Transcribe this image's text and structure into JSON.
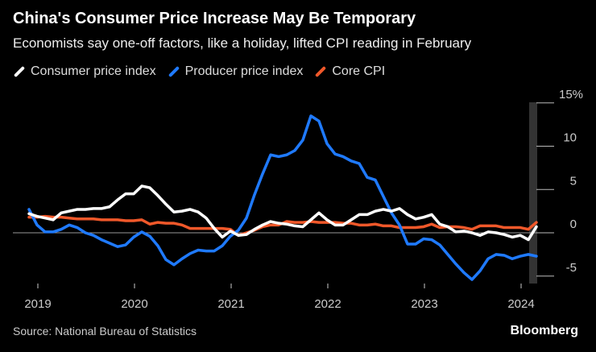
{
  "title": "China's Consumer Price Increase May Be Temporary",
  "subtitle": "Economists say one-off factors, like a holiday, lifted CPI reading in February",
  "source": "Source: National Bureau of Statistics",
  "logo": "Bloomberg",
  "chart_data": {
    "type": "line",
    "start_month": "2018-11",
    "end_month": "2024-02",
    "x_tick_labels": [
      "2019",
      "2020",
      "2021",
      "2022",
      "2023",
      "2024"
    ],
    "y_tick_labels": [
      "15%",
      "10",
      "5",
      "0",
      "-5"
    ],
    "y_ticks": [
      15,
      10,
      5,
      0,
      -5
    ],
    "ylim": [
      -5.5,
      15
    ],
    "legend_position": "top-left",
    "highlight_period": "2024-02",
    "series": [
      {
        "name": "Consumer price index",
        "color": "#ffffff",
        "values": [
          2.2,
          1.9,
          1.7,
          1.5,
          2.3,
          2.5,
          2.7,
          2.7,
          2.8,
          2.8,
          3.0,
          3.8,
          4.5,
          4.5,
          5.4,
          5.2,
          4.3,
          3.3,
          2.4,
          2.5,
          2.7,
          2.4,
          1.7,
          0.5,
          -0.5,
          0.2,
          -0.3,
          -0.2,
          0.4,
          0.9,
          1.3,
          1.1,
          1.0,
          0.8,
          0.7,
          1.5,
          2.3,
          1.5,
          0.9,
          0.9,
          1.5,
          2.1,
          2.1,
          2.5,
          2.7,
          2.5,
          2.8,
          2.1,
          1.6,
          1.8,
          2.1,
          1.0,
          0.7,
          0.1,
          0.2,
          0.0,
          -0.3,
          0.1,
          0.0,
          -0.2,
          -0.5,
          -0.3,
          -0.8,
          0.7
        ]
      },
      {
        "name": "Producer price index",
        "color": "#1f7aff",
        "values": [
          2.7,
          0.9,
          0.1,
          0.1,
          0.4,
          0.9,
          0.6,
          0.0,
          -0.3,
          -0.8,
          -1.2,
          -1.6,
          -1.4,
          -0.5,
          0.1,
          -0.4,
          -1.5,
          -3.1,
          -3.7,
          -3.0,
          -2.4,
          -2.0,
          -2.1,
          -2.1,
          -1.5,
          -0.4,
          0.3,
          1.7,
          4.4,
          6.8,
          9.0,
          8.8,
          9.0,
          9.5,
          10.7,
          13.5,
          12.9,
          10.3,
          9.1,
          8.8,
          8.3,
          8.0,
          6.4,
          6.1,
          4.2,
          2.3,
          0.9,
          -1.3,
          -1.3,
          -0.7,
          -0.8,
          -1.4,
          -2.5,
          -3.6,
          -4.6,
          -5.4,
          -4.4,
          -3.0,
          -2.5,
          -2.6,
          -3.0,
          -2.7,
          -2.5,
          -2.7
        ]
      },
      {
        "name": "Core CPI",
        "color": "#f0582a",
        "values": [
          1.8,
          1.8,
          1.9,
          1.8,
          1.8,
          1.7,
          1.6,
          1.6,
          1.6,
          1.5,
          1.5,
          1.5,
          1.4,
          1.4,
          1.5,
          1.0,
          1.2,
          1.1,
          1.1,
          0.9,
          0.5,
          0.5,
          0.5,
          0.5,
          0.5,
          0.4,
          -0.3,
          0.0,
          0.3,
          0.7,
          0.9,
          0.9,
          1.3,
          1.2,
          1.2,
          1.3,
          1.2,
          1.2,
          1.2,
          1.1,
          1.1,
          0.9,
          0.9,
          1.0,
          0.8,
          0.8,
          0.6,
          0.6,
          0.6,
          0.7,
          1.0,
          0.6,
          0.7,
          0.7,
          0.6,
          0.4,
          0.8,
          0.8,
          0.8,
          0.6,
          0.6,
          0.6,
          0.4,
          1.2
        ]
      }
    ]
  }
}
